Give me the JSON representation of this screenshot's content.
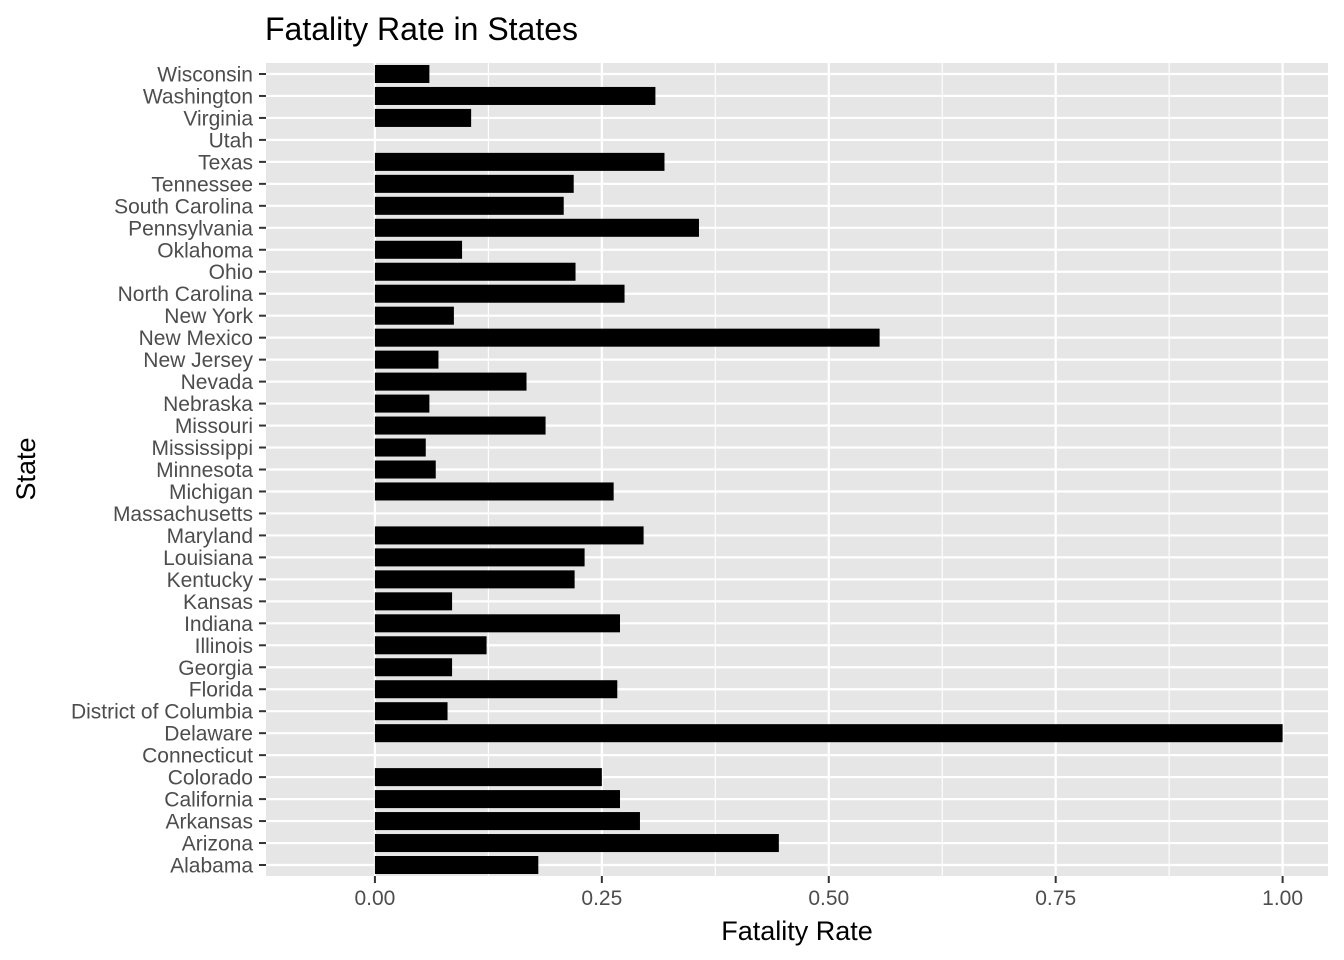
{
  "chart_data": {
    "type": "bar",
    "orientation": "horizontal",
    "title": "Fatality Rate in States",
    "xlabel": "Fatality Rate",
    "ylabel": "State",
    "xlim": [
      -0.12,
      1.05
    ],
    "xticks": [
      0.0,
      0.25,
      0.5,
      0.75,
      1.0
    ],
    "xtick_labels": [
      "0.00",
      "0.25",
      "0.50",
      "0.75",
      "1.00"
    ],
    "grid": true,
    "legend": "none",
    "bar_color": "#000000",
    "panel_background": "#e6e6e6",
    "categories": [
      "Alabama",
      "Arizona",
      "Arkansas",
      "California",
      "Colorado",
      "Connecticut",
      "Delaware",
      "District of Columbia",
      "Florida",
      "Georgia",
      "Illinois",
      "Indiana",
      "Kansas",
      "Kentucky",
      "Louisiana",
      "Maryland",
      "Massachusetts",
      "Michigan",
      "Minnesota",
      "Mississippi",
      "Missouri",
      "Nebraska",
      "Nevada",
      "New Jersey",
      "New Mexico",
      "New York",
      "North Carolina",
      "Ohio",
      "Oklahoma",
      "Pennsylvania",
      "South Carolina",
      "Tennessee",
      "Texas",
      "Utah",
      "Virginia",
      "Washington",
      "Wisconsin"
    ],
    "values": [
      0.18,
      0.445,
      0.292,
      0.27,
      0.25,
      0.0,
      1.0,
      0.08,
      0.267,
      0.085,
      0.123,
      0.27,
      0.085,
      0.22,
      0.231,
      0.296,
      0.0,
      0.263,
      0.067,
      0.056,
      0.188,
      0.06,
      0.167,
      0.07,
      0.556,
      0.087,
      0.275,
      0.221,
      0.096,
      0.357,
      0.208,
      0.219,
      0.319,
      0.0,
      0.106,
      0.309,
      0.06
    ]
  }
}
